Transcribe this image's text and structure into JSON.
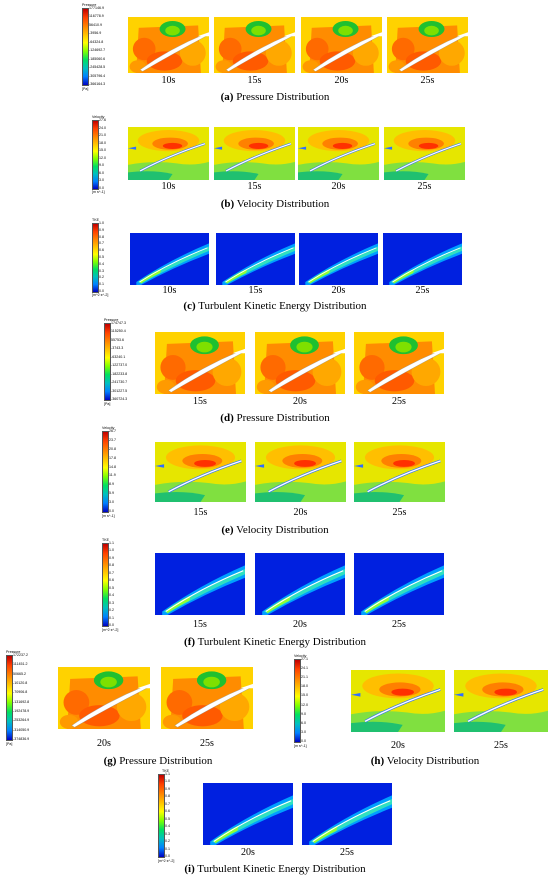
{
  "colors": {
    "pressure_scale": [
      "#c00000",
      "#ff4000",
      "#ff8000",
      "#ffbf00",
      "#ffff00",
      "#80ff00",
      "#00e060",
      "#00c0c0",
      "#0080ff",
      "#0000c0"
    ],
    "velocity_scale": [
      "#c00000",
      "#ff4000",
      "#ff8000",
      "#ffbf00",
      "#ffff00",
      "#80ff00",
      "#00e060",
      "#00c0c0",
      "#0080ff",
      "#0000c0"
    ],
    "tke_scale": [
      "#c00000",
      "#ff4000",
      "#ff8000",
      "#ffbf00",
      "#ffff00",
      "#80ff00",
      "#00e060",
      "#00c0c0",
      "#0080ff",
      "#0000c0"
    ]
  },
  "groups": {
    "a": {
      "caption_letter": "(a)",
      "caption_text": "Pressure Distribution",
      "times": [
        "10s",
        "15s",
        "20s",
        "25s"
      ],
      "legend": {
        "title": "Pressure",
        "ticks": [
          "177146.9",
          "116778.9",
          "56410.9",
          "-3956.9",
          "-64324.8",
          "-124692.7",
          "-185060.6",
          "-245428.5",
          "-305796.4",
          "-366164.3"
        ],
        "unit": "[Pa]"
      }
    },
    "b": {
      "caption_letter": "(b)",
      "caption_text": "Velocity Distribution",
      "times": [
        "10s",
        "15s",
        "20s",
        "25s"
      ],
      "legend": {
        "title": "Velocity",
        "ticks": [
          "27.6",
          "24.0",
          "21.0",
          "18.0",
          "15.0",
          "12.0",
          "9.0",
          "6.0",
          "3.0",
          "0.0"
        ],
        "unit": "[m s^-1]"
      }
    },
    "c": {
      "caption_letter": "(c)",
      "caption_text": "Turbulent Kinetic Energy Distribution",
      "times": [
        "10s",
        "15s",
        "20s",
        "25s"
      ],
      "legend": {
        "title": "TKE",
        "ticks": [
          "1.0",
          "0.9",
          "0.8",
          "0.7",
          "0.6",
          "0.5",
          "0.4",
          "0.3",
          "0.2",
          "0.1",
          "0.0"
        ],
        "unit": "[m^2 s^-2]"
      }
    },
    "d": {
      "caption_letter": "(d)",
      "caption_text": "Pressure Distribution",
      "times": [
        "15s",
        "20s",
        "25s"
      ],
      "legend": {
        "title": "Pressure",
        "ticks": [
          "174747.3",
          "115250.4",
          "55753.6",
          "-3743.3",
          "-63240.1",
          "-122737.0",
          "-182233.8",
          "-241730.7",
          "-301227.5",
          "-360724.3"
        ],
        "unit": "[Pa]"
      }
    },
    "e": {
      "caption_letter": "(e)",
      "caption_text": "Velocity Distribution",
      "times": [
        "15s",
        "20s",
        "25s"
      ],
      "legend": {
        "title": "Velocity",
        "ticks": [
          "26.7",
          "23.7",
          "20.8",
          "17.8",
          "14.8",
          "11.9",
          "8.9",
          "5.9",
          "3.0",
          "0.0"
        ],
        "unit": "[m s^-1]"
      }
    },
    "f": {
      "caption_letter": "(f)",
      "caption_text": "Turbulent Kinetic Energy Distribution",
      "times": [
        "15s",
        "20s",
        "25s"
      ],
      "legend": {
        "title": "TKE",
        "ticks": [
          "1.1",
          "1.0",
          "0.9",
          "0.8",
          "0.7",
          "0.6",
          "0.5",
          "0.4",
          "0.3",
          "0.2",
          "0.1",
          "0.0"
        ],
        "unit": "[m^2 s^-2]"
      }
    },
    "g": {
      "caption_letter": "(g)",
      "caption_text": "Pressure Distribution",
      "times": [
        "20s",
        "25s"
      ],
      "legend": {
        "title": "Pressure",
        "ticks": [
          "172237.2",
          "111451.2",
          "50665.2",
          "-10120.8",
          "-70906.8",
          "-131692.8",
          "-192478.9",
          "-253264.9",
          "-314050.9",
          "-374836.9"
        ],
        "unit": "[Pa]"
      }
    },
    "h": {
      "caption_letter": "(h)",
      "caption_text": "Velocity Distribution",
      "times": [
        "20s",
        "25s"
      ],
      "legend": {
        "title": "Velocity",
        "ticks": [
          "27.1",
          "24.1",
          "21.1",
          "18.0",
          "15.0",
          "12.0",
          "9.0",
          "6.0",
          "3.0",
          "0.0"
        ],
        "unit": "[m s^-1]"
      }
    },
    "i": {
      "caption_letter": "(i)",
      "caption_text": "Turbulent Kinetic Energy Distribution",
      "times": [
        "20s",
        "25s"
      ],
      "legend": {
        "title": "TKE",
        "ticks": [
          "1.1",
          "1.0",
          "0.9",
          "0.8",
          "0.7",
          "0.6",
          "0.5",
          "0.4",
          "0.3",
          "0.2",
          "0.1",
          "0.0"
        ],
        "unit": "[m^2 s^-2]"
      }
    }
  }
}
